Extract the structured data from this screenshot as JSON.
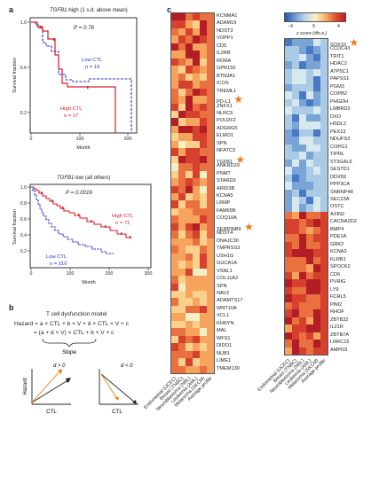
{
  "panels": {
    "a": {
      "letter": "a",
      "top": {
        "title_gene": "TGFB1",
        "title_rest": "-high (1 s.d. above mean)",
        "p_value": "P = 0.76",
        "low_label": "Low CTL",
        "low_n": "n = 19",
        "high_label": "High CTL",
        "high_n": "n = 17",
        "ylabel": "Survival fraction",
        "xlabel": "Month",
        "yticks": [
          "1.0",
          "0.6",
          "0.2"
        ],
        "xticks": [
          "0",
          "100",
          "200"
        ]
      },
      "bottom": {
        "title_gene": "TGFB1",
        "title_rest": "-low (all others)",
        "p_value": "P = 0.0016",
        "high_label": "High CTL",
        "high_n": "n = 71",
        "low_label": "Low CTL",
        "low_n": "n = 210",
        "ylabel": "Survival fraction",
        "xlabel": "Month",
        "yticks": [
          "1.0",
          "0.8",
          "0.6",
          "0.4",
          "0.2"
        ],
        "xticks": [
          "0",
          "100",
          "200",
          "300"
        ]
      }
    },
    "b": {
      "letter": "b",
      "title": "T cell dysfunction model",
      "eq1": "Hazard = a × CTL + b × V + d × CTL × V + c",
      "eq2": "= (a + d × V) × CTL + b × V + c",
      "slope_label": "Slope",
      "left_cond": "d > 0",
      "right_cond": "d < 0",
      "hazard_label": "Hazard",
      "ctl_label": "CTL"
    },
    "c": {
      "letter": "c",
      "colorbar_ticks": [
        "−4",
        "0",
        "4"
      ],
      "colorbar_label": "z score (dfs.e.)",
      "left_genes": [
        "KCNMA1",
        "ADAM19",
        "NDST3",
        "VOPP1",
        "CD5",
        "IL2RB",
        "RORA",
        "GPR155",
        "BTN3A1",
        "ICOS",
        "TREML1",
        "PD-L1",
        "ZNFX1",
        "NLRC5",
        "POU2F2",
        "ADGRG5",
        "ELMO1",
        "SPN",
        "NFATC3",
        "TGFB1",
        "ANKRD29",
        "PNMT",
        "STARD3",
        "ARID3B",
        "KCNA5",
        "LRMP",
        "FAM65B",
        "COQ10A",
        "SERPINB9",
        "NDST4",
        "DNAJC30",
        "TMPRSS3",
        "USH1G",
        "GUCA1A",
        "VSNL1",
        "COL11A2",
        "SPN",
        "NAV2",
        "ADAMTS17",
        "WNT10A",
        "XCL1",
        "KHNYN",
        "MAL",
        "WFS1",
        "DIDO1",
        "NUB1",
        "LIME1",
        "TMEM130"
      ],
      "right_genes": [
        "SOX10",
        "CCDC43",
        "TRIT1",
        "HDAC2",
        "ATP5C1",
        "PAPSS1",
        "PGM3",
        "COPB2",
        "PHGDH",
        "LMBRD2",
        "DXO",
        "HSDL2",
        "PEX13",
        "NDUFS2",
        "COPG1",
        "TIPRL",
        "ST3GAL6",
        "SESTD1",
        "DDX59",
        "PPP3CA",
        "SNRNP48",
        "SEC23A",
        "OSTC",
        "AXIN2",
        "CACNA2D2",
        "BMP4",
        "PDE1A",
        "GRK2",
        "KCNA3",
        "KLRB1",
        "SPOCK2",
        "CD6",
        "PVRIG",
        "LY9",
        "FCRL5",
        "PIM2",
        "RHOF",
        "ZBTB32",
        "IL21R",
        "ZBTB7A",
        "LRRC15",
        "AMPD3"
      ],
      "starred": [
        "PD-L1",
        "TGFB1",
        "SERPINB9",
        "SOX10"
      ],
      "columns": [
        "Endometrial (UCEC)",
        "Breast (TNBC)",
        "Neuroblastoma (NBL)",
        "Leukemia (AML)",
        "Melanoma (SKCM)",
        "Average profile"
      ]
    }
  },
  "colors": {
    "red": "#d6202a",
    "blue": "#2233c4",
    "orange": "#f07a1a"
  }
}
